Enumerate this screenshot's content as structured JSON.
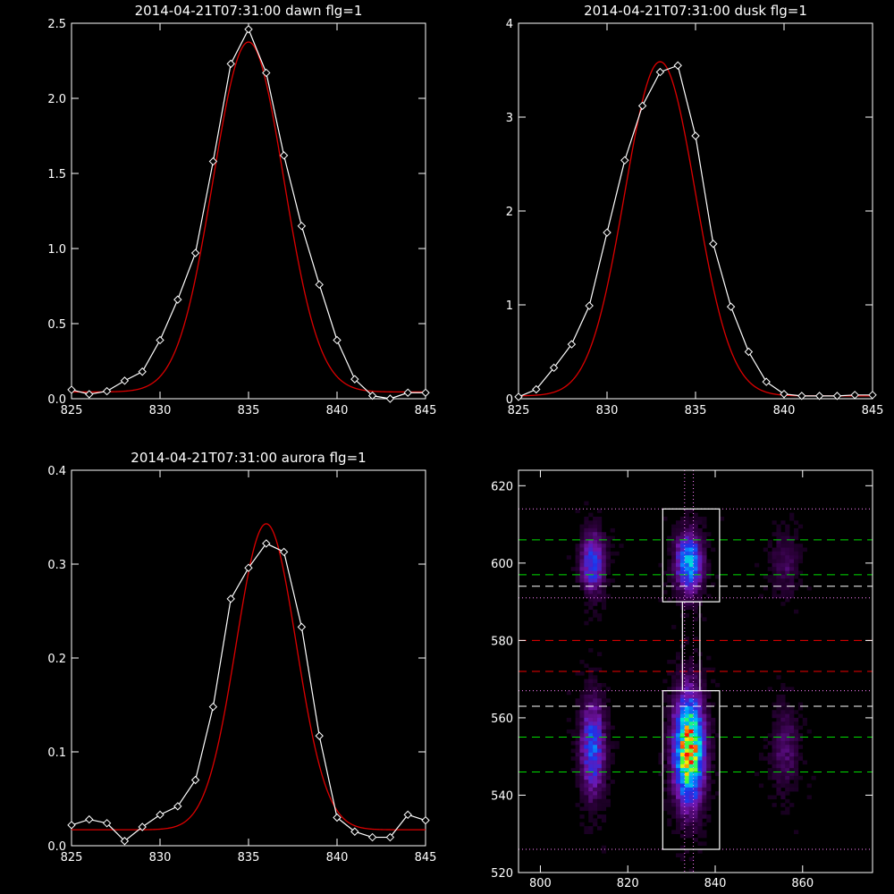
{
  "chart_data": [
    {
      "id": "dawn",
      "type": "line",
      "title": "2014-04-21T07:31:00 dawn flg=1",
      "xlim": [
        825,
        845
      ],
      "ylim": [
        0,
        2.5
      ],
      "xticks": [
        825,
        830,
        835,
        840,
        845
      ],
      "yticks": [
        0.0,
        0.5,
        1.0,
        1.5,
        2.0,
        2.5
      ],
      "ytick_labels": [
        "0.0",
        "0.5",
        "1.0",
        "1.5",
        "2.0",
        "2.5"
      ],
      "series": [
        {
          "style": "line-with-diamond-markers",
          "color": "#ffffff",
          "x": [
            825,
            826,
            827,
            828,
            829,
            830,
            831,
            832,
            833,
            834,
            835,
            836,
            837,
            838,
            839,
            840,
            841,
            842,
            843,
            844,
            845
          ],
          "y": [
            0.06,
            0.03,
            0.05,
            0.12,
            0.18,
            0.39,
            0.66,
            0.97,
            1.58,
            2.23,
            2.46,
            2.17,
            1.62,
            1.15,
            0.76,
            0.39,
            0.13,
            0.02,
            0.0,
            0.04,
            0.04
          ]
        },
        {
          "style": "gaussian-fit",
          "color": "#dd0000",
          "amplitude": 2.33,
          "center": 835.0,
          "sigma": 2.0,
          "baseline": 0.045
        }
      ]
    },
    {
      "id": "dusk",
      "type": "line",
      "title": "2014-04-21T07:31:00 dusk flg=1",
      "xlim": [
        825,
        845
      ],
      "ylim": [
        0,
        4
      ],
      "xticks": [
        825,
        830,
        835,
        840,
        845
      ],
      "yticks": [
        0,
        1,
        2,
        3,
        4
      ],
      "ytick_labels": [
        "0",
        "1",
        "2",
        "3",
        "4"
      ],
      "series": [
        {
          "style": "line-with-diamond-markers",
          "color": "#ffffff",
          "x": [
            825,
            826,
            827,
            828,
            829,
            830,
            831,
            832,
            833,
            834,
            835,
            836,
            837,
            838,
            839,
            840,
            841,
            842,
            843,
            844,
            845
          ],
          "y": [
            0.02,
            0.1,
            0.33,
            0.58,
            0.99,
            1.77,
            2.54,
            3.12,
            3.48,
            3.55,
            2.8,
            1.65,
            0.98,
            0.5,
            0.18,
            0.05,
            0.03,
            0.03,
            0.03,
            0.04,
            0.04
          ]
        },
        {
          "style": "gaussian-fit",
          "color": "#dd0000",
          "amplitude": 3.56,
          "center": 833.0,
          "sigma": 2.0,
          "baseline": 0.03
        }
      ]
    },
    {
      "id": "aurora",
      "type": "line",
      "title": "2014-04-21T07:31:00 aurora flg=1",
      "xlim": [
        825,
        845
      ],
      "ylim": [
        0,
        0.4
      ],
      "xticks": [
        825,
        830,
        835,
        840,
        845
      ],
      "yticks": [
        0.0,
        0.1,
        0.2,
        0.3,
        0.4
      ],
      "ytick_labels": [
        "0.0",
        "0.1",
        "0.2",
        "0.3",
        "0.4"
      ],
      "series": [
        {
          "style": "line-with-diamond-markers",
          "color": "#ffffff",
          "x": [
            825,
            826,
            827,
            828,
            829,
            830,
            831,
            832,
            833,
            834,
            835,
            836,
            837,
            838,
            839,
            840,
            841,
            842,
            843,
            844,
            845
          ],
          "y": [
            0.022,
            0.028,
            0.024,
            0.005,
            0.02,
            0.033,
            0.042,
            0.07,
            0.148,
            0.263,
            0.296,
            0.322,
            0.313,
            0.233,
            0.117,
            0.03,
            0.015,
            0.009,
            0.009,
            0.033,
            0.027
          ]
        },
        {
          "style": "gaussian-fit",
          "color": "#dd0000",
          "amplitude": 0.326,
          "center": 836.0,
          "sigma": 1.7,
          "baseline": 0.017
        }
      ]
    },
    {
      "id": "image",
      "type": "heatmap",
      "title": "",
      "colormap": "black-purple-blue-cyan-green-yellow-red",
      "xlim": [
        795,
        876
      ],
      "ylim": [
        520,
        624
      ],
      "xticks": [
        800,
        820,
        840,
        860
      ],
      "yticks": [
        520,
        540,
        560,
        580,
        600,
        620
      ],
      "blobs": [
        {
          "x": 834,
          "y": 552,
          "sx": 2.2,
          "sy": 9,
          "amp": 1.0
        },
        {
          "x": 834,
          "y": 600,
          "sx": 2.0,
          "sy": 5,
          "amp": 0.55
        },
        {
          "x": 812,
          "y": 552,
          "sx": 1.8,
          "sy": 8,
          "amp": 0.42
        },
        {
          "x": 812,
          "y": 600,
          "sx": 1.8,
          "sy": 5,
          "amp": 0.38
        },
        {
          "x": 856,
          "y": 552,
          "sx": 2.0,
          "sy": 7,
          "amp": 0.14
        },
        {
          "x": 856,
          "y": 600,
          "sx": 2.0,
          "sy": 5,
          "amp": 0.12
        }
      ],
      "boxes": [
        {
          "x0": 828,
          "x1": 841,
          "y0": 590,
          "y1": 614
        },
        {
          "x0": 828,
          "x1": 841,
          "y0": 526,
          "y1": 567
        },
        {
          "x0": 832.5,
          "x1": 836.5,
          "y0": 567,
          "y1": 590
        }
      ],
      "hlines": [
        {
          "y": 614,
          "color": "#ff80ff",
          "style": "dotted"
        },
        {
          "y": 591,
          "color": "#ff80ff",
          "style": "dotted"
        },
        {
          "y": 567,
          "color": "#ff80ff",
          "style": "dotted"
        },
        {
          "y": 526,
          "color": "#ff80ff",
          "style": "dotted"
        },
        {
          "y": 606,
          "color": "#00dd00",
          "style": "dashed"
        },
        {
          "y": 597,
          "color": "#00dd00",
          "style": "dashed"
        },
        {
          "y": 555,
          "color": "#00dd00",
          "style": "dashed"
        },
        {
          "y": 546,
          "color": "#00dd00",
          "style": "dashed"
        },
        {
          "y": 594,
          "color": "#ffffff",
          "style": "dashed"
        },
        {
          "y": 563,
          "color": "#ffffff",
          "style": "dashed"
        },
        {
          "y": 580,
          "color": "#ee0000",
          "style": "dashed"
        },
        {
          "y": 572,
          "color": "#ee0000",
          "style": "dashed"
        }
      ],
      "vlines": [
        {
          "x": 833,
          "color": "#ff80ff",
          "style": "dotted"
        },
        {
          "x": 835,
          "color": "#ff80ff",
          "style": "dotted"
        }
      ]
    }
  ]
}
